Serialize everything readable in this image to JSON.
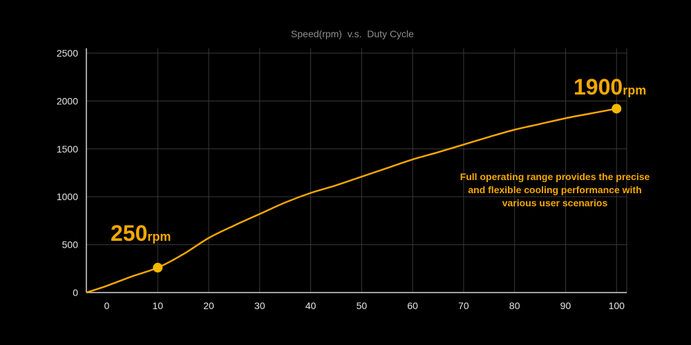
{
  "chart_data": {
    "type": "line",
    "title": "Speed(rpm)  v.s.  Duty Cycle",
    "xlabel": "",
    "ylabel": "",
    "x_ticks": [
      "0",
      "10",
      "20",
      "30",
      "40",
      "50",
      "60",
      "70",
      "80",
      "90",
      "100"
    ],
    "y_ticks": [
      "0",
      "500",
      "1000",
      "1500",
      "2000",
      "2500"
    ],
    "xlim": [
      -4,
      102
    ],
    "ylim": [
      0,
      2550
    ],
    "grid": true,
    "series": [
      {
        "color": "#f5a800",
        "x": [
          -4,
          0,
          5,
          10,
          15,
          20,
          25,
          30,
          35,
          40,
          45,
          50,
          55,
          60,
          65,
          70,
          75,
          80,
          85,
          90,
          95,
          100
        ],
        "y": [
          0,
          70,
          170,
          260,
          400,
          570,
          700,
          820,
          940,
          1040,
          1120,
          1210,
          1300,
          1390,
          1465,
          1545,
          1625,
          1700,
          1760,
          1820,
          1870,
          1920
        ]
      }
    ],
    "markers": [
      {
        "x": 10,
        "y": 260
      },
      {
        "x": 100,
        "y": 1920
      }
    ],
    "annotations": [
      {
        "value": "250",
        "unit": "rpm"
      },
      {
        "value": "1900",
        "unit": "rpm"
      }
    ],
    "note_lines": [
      "Full operating range provides the precise",
      "and flexible cooling performance with",
      "various user scenarios"
    ]
  }
}
